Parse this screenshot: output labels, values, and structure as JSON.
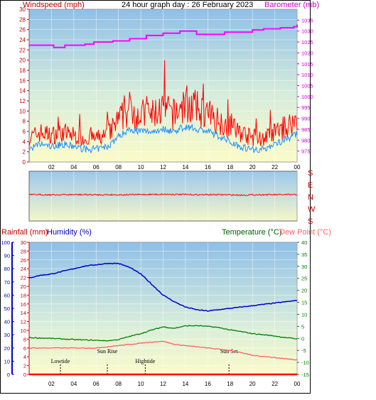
{
  "header": {
    "title": "24 hour graph day : 26 February 2023",
    "left_axis_label": "Windspeed (mph)",
    "right_axis_label": "Barometer (mb)"
  },
  "wind_dir_labels": [
    "S",
    "E",
    "N",
    "W",
    "S"
  ],
  "bottom_header": {
    "rain_label": "Rainfall (mm)",
    "humidity_label": "Humidity (%)",
    "temp_label": "Temperature (°C)",
    "dew_label": "Dew Point (°C)"
  },
  "events": [
    {
      "label": "Lowtide",
      "hour": 2.8
    },
    {
      "label": "Sun Rise",
      "hour": 7.0
    },
    {
      "label": "Hightide",
      "hour": 10.4
    },
    {
      "label": "Sun Set",
      "hour": 17.9
    }
  ],
  "colors": {
    "wind": "#ff0000",
    "wind_avg": "#1e90ff",
    "baro": "#ff00ff",
    "humidity": "#0000c8",
    "temp": "#008000",
    "dew": "#ff6060",
    "rain": "#ff0000"
  },
  "chart_data": [
    {
      "type": "line",
      "name": "wind-baro",
      "x_unit": "hour",
      "xticks": [
        {
          "hour": 2,
          "label": "02"
        },
        {
          "hour": 4,
          "label": "04"
        },
        {
          "hour": 6,
          "label": "06"
        },
        {
          "hour": 8,
          "label": "08"
        },
        {
          "hour": 10,
          "label": "10"
        },
        {
          "hour": 12,
          "label": "12"
        },
        {
          "hour": 14,
          "label": "14"
        },
        {
          "hour": 16,
          "label": "16"
        },
        {
          "hour": 18,
          "label": "18"
        },
        {
          "hour": 20,
          "label": "20"
        },
        {
          "hour": 22,
          "label": "22"
        },
        {
          "hour": 24,
          "label": "00"
        }
      ],
      "left_ylim": [
        0,
        30
      ],
      "left_yticks": [
        0,
        2,
        4,
        6,
        8,
        10,
        12,
        14,
        16,
        18,
        20,
        22,
        24,
        26,
        28,
        30
      ],
      "right_ylim": [
        970,
        1040
      ],
      "right_yticks": [
        975,
        980,
        985,
        990,
        995,
        1000,
        1005,
        1010,
        1015,
        1020,
        1025,
        1030,
        1035
      ],
      "gust_hourly": [
        4,
        5,
        4.5,
        5,
        4.5,
        4,
        4,
        4.5,
        7,
        9,
        8,
        8,
        9,
        8,
        10,
        9,
        8,
        7,
        6,
        5,
        4,
        4,
        5,
        6,
        7
      ],
      "avg_hourly": [
        2.5,
        3.5,
        3,
        3.5,
        3,
        2.5,
        2.5,
        3,
        5,
        6.5,
        6,
        6,
        6.5,
        6,
        7,
        6.5,
        6,
        5,
        4,
        3,
        2.5,
        2.5,
        3.5,
        4.5,
        5.5
      ],
      "baro": [
        {
          "hour": 0,
          "value": 1023.5
        },
        {
          "hour": 1.7,
          "value": 1023.5
        },
        {
          "hour": 2.2,
          "value": 1022.5
        },
        {
          "hour": 3.2,
          "value": 1023.5
        },
        {
          "hour": 5,
          "value": 1024
        },
        {
          "hour": 5.8,
          "value": 1025
        },
        {
          "hour": 7.5,
          "value": 1025.5
        },
        {
          "hour": 9,
          "value": 1026.5
        },
        {
          "hour": 10.5,
          "value": 1028
        },
        {
          "hour": 12,
          "value": 1029
        },
        {
          "hour": 13.5,
          "value": 1030
        },
        {
          "hour": 15,
          "value": 1028.5
        },
        {
          "hour": 16.5,
          "value": 1028.5
        },
        {
          "hour": 17.5,
          "value": 1029.5
        },
        {
          "hour": 19,
          "value": 1029.5
        },
        {
          "hour": 20,
          "value": 1030.5
        },
        {
          "hour": 21,
          "value": 1031
        },
        {
          "hour": 22.5,
          "value": 1031.5
        },
        {
          "hour": 23.7,
          "value": 1032
        },
        {
          "hour": 24,
          "value": 1033
        }
      ]
    },
    {
      "type": "line",
      "name": "wind-direction",
      "x_unit": "hour",
      "ylim": [
        0,
        360
      ],
      "dir_hourly": [
        180,
        180,
        181,
        180,
        180,
        180,
        181,
        180,
        181,
        180,
        179,
        178,
        177,
        178,
        179,
        180,
        180,
        180,
        181,
        183,
        181,
        180,
        180,
        180,
        180
      ]
    },
    {
      "type": "line",
      "name": "temp-hum-rain",
      "x_unit": "hour",
      "xticks": [
        {
          "hour": 2,
          "label": "02"
        },
        {
          "hour": 4,
          "label": "04"
        },
        {
          "hour": 6,
          "label": "06"
        },
        {
          "hour": 8,
          "label": "08"
        },
        {
          "hour": 10,
          "label": "10"
        },
        {
          "hour": 12,
          "label": "12"
        },
        {
          "hour": 14,
          "label": "14"
        },
        {
          "hour": 16,
          "label": "16"
        },
        {
          "hour": 18,
          "label": "18"
        },
        {
          "hour": 20,
          "label": "20"
        },
        {
          "hour": 22,
          "label": "22"
        },
        {
          "hour": 24,
          "label": "00"
        }
      ],
      "humidity_ylim": [
        0,
        100
      ],
      "humidity_yticks": [
        0,
        10,
        20,
        30,
        40,
        50,
        60,
        70,
        80,
        90,
        100
      ],
      "rain_ylim": [
        0,
        30
      ],
      "rain_yticks": [
        0,
        2,
        4,
        6,
        8,
        10,
        12,
        14,
        16,
        18,
        20,
        22,
        24,
        26,
        28,
        30
      ],
      "temp_ylim": [
        -15,
        40
      ],
      "temp_yticks": [
        -15,
        -10,
        -5,
        0,
        5,
        10,
        15,
        20,
        25,
        30,
        35,
        40
      ],
      "humidity": [
        {
          "hour": 0,
          "value": 73
        },
        {
          "hour": 1,
          "value": 75
        },
        {
          "hour": 2,
          "value": 76
        },
        {
          "hour": 3,
          "value": 78
        },
        {
          "hour": 4,
          "value": 80
        },
        {
          "hour": 5,
          "value": 82
        },
        {
          "hour": 6,
          "value": 83
        },
        {
          "hour": 7,
          "value": 84
        },
        {
          "hour": 8,
          "value": 84
        },
        {
          "hour": 9,
          "value": 81
        },
        {
          "hour": 10,
          "value": 76
        },
        {
          "hour": 11,
          "value": 68
        },
        {
          "hour": 12,
          "value": 60
        },
        {
          "hour": 13,
          "value": 55
        },
        {
          "hour": 14,
          "value": 51
        },
        {
          "hour": 15,
          "value": 49
        },
        {
          "hour": 16,
          "value": 48
        },
        {
          "hour": 17,
          "value": 49
        },
        {
          "hour": 18,
          "value": 50
        },
        {
          "hour": 19,
          "value": 51
        },
        {
          "hour": 20,
          "value": 52
        },
        {
          "hour": 21,
          "value": 53
        },
        {
          "hour": 22,
          "value": 54
        },
        {
          "hour": 23,
          "value": 55
        },
        {
          "hour": 24,
          "value": 56
        }
      ],
      "temperature": [
        {
          "hour": 0,
          "value": 0.3
        },
        {
          "hour": 2,
          "value": 0
        },
        {
          "hour": 4,
          "value": -0.5
        },
        {
          "hour": 6,
          "value": -0.8
        },
        {
          "hour": 7,
          "value": -1
        },
        {
          "hour": 8,
          "value": -0.5
        },
        {
          "hour": 9,
          "value": 0.8
        },
        {
          "hour": 10,
          "value": 2
        },
        {
          "hour": 11,
          "value": 3.5
        },
        {
          "hour": 12,
          "value": 4.8
        },
        {
          "hour": 13,
          "value": 4.2
        },
        {
          "hour": 14,
          "value": 5.2
        },
        {
          "hour": 15,
          "value": 5.3
        },
        {
          "hour": 16,
          "value": 5
        },
        {
          "hour": 17,
          "value": 4.5
        },
        {
          "hour": 18,
          "value": 3.5
        },
        {
          "hour": 19,
          "value": 2.8
        },
        {
          "hour": 20,
          "value": 2
        },
        {
          "hour": 21,
          "value": 1.5
        },
        {
          "hour": 22,
          "value": 1
        },
        {
          "hour": 23,
          "value": 0.3
        },
        {
          "hour": 24,
          "value": -0.2
        }
      ],
      "dew_point": [
        {
          "hour": 0,
          "value": -4
        },
        {
          "hour": 2,
          "value": -4
        },
        {
          "hour": 4,
          "value": -4
        },
        {
          "hour": 6,
          "value": -4
        },
        {
          "hour": 7,
          "value": -3.5
        },
        {
          "hour": 8,
          "value": -3
        },
        {
          "hour": 9,
          "value": -2.5
        },
        {
          "hour": 10,
          "value": -2
        },
        {
          "hour": 11,
          "value": -1.5
        },
        {
          "hour": 12,
          "value": -1.2
        },
        {
          "hour": 13,
          "value": -2.5
        },
        {
          "hour": 14,
          "value": -3
        },
        {
          "hour": 15,
          "value": -3.5
        },
        {
          "hour": 16,
          "value": -4
        },
        {
          "hour": 17,
          "value": -4.5
        },
        {
          "hour": 18,
          "value": -5
        },
        {
          "hour": 19,
          "value": -6
        },
        {
          "hour": 20,
          "value": -7
        },
        {
          "hour": 21,
          "value": -7.5
        },
        {
          "hour": 22,
          "value": -8
        },
        {
          "hour": 23,
          "value": -8.5
        },
        {
          "hour": 24,
          "value": -9
        }
      ],
      "rainfall": [
        {
          "hour": 0,
          "value": 0
        },
        {
          "hour": 24,
          "value": 0
        }
      ]
    }
  ]
}
